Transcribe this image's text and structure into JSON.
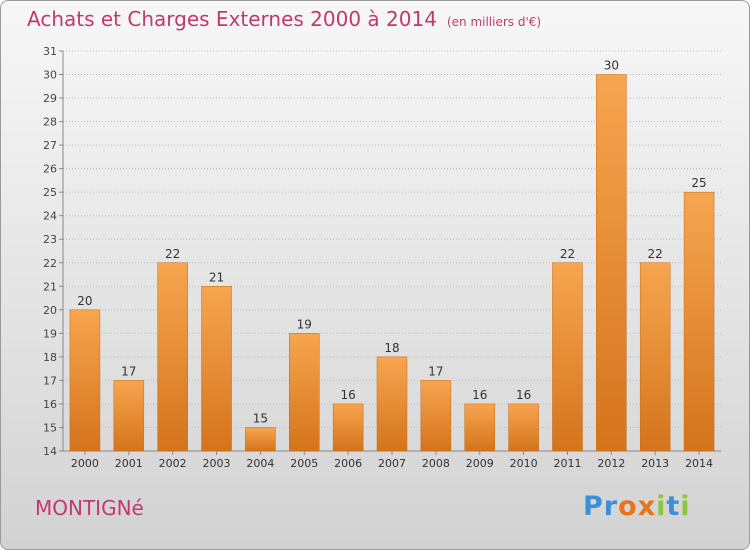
{
  "header": {
    "title": "Achats et Charges Externes 2000 à 2014",
    "unit": "(en milliers d'€)"
  },
  "footer": {
    "commune": "MONTIGNé",
    "logo_letters": [
      "P",
      "r",
      "o",
      "x",
      "i",
      "t",
      "i"
    ],
    "logo_colors": [
      "#3a8fd8",
      "#3a8fd8",
      "#e8731a",
      "#e8731a",
      "#8cc63f",
      "#3a8fd8",
      "#8cc63f"
    ]
  },
  "colors": {
    "title": "#c13a6e",
    "bar_top": "#f7a550",
    "bar_bottom": "#d4741c",
    "grid": "#bbbbbb"
  },
  "chart_data": {
    "type": "bar",
    "title": "Achats et Charges Externes 2000 à 2014",
    "subtitle": "(en milliers d'€)",
    "categories": [
      "2000",
      "2001",
      "2002",
      "2003",
      "2004",
      "2005",
      "2006",
      "2007",
      "2008",
      "2009",
      "2010",
      "2011",
      "2012",
      "2013",
      "2014"
    ],
    "values": [
      20,
      17,
      22,
      21,
      15,
      19,
      16,
      18,
      17,
      16,
      16,
      22,
      30,
      22,
      25
    ],
    "ylim": [
      14,
      31
    ],
    "yticks": [
      14,
      15,
      16,
      17,
      18,
      19,
      20,
      21,
      22,
      23,
      24,
      25,
      26,
      27,
      28,
      29,
      30,
      31
    ],
    "grid": true,
    "xlabel": "",
    "ylabel": ""
  }
}
